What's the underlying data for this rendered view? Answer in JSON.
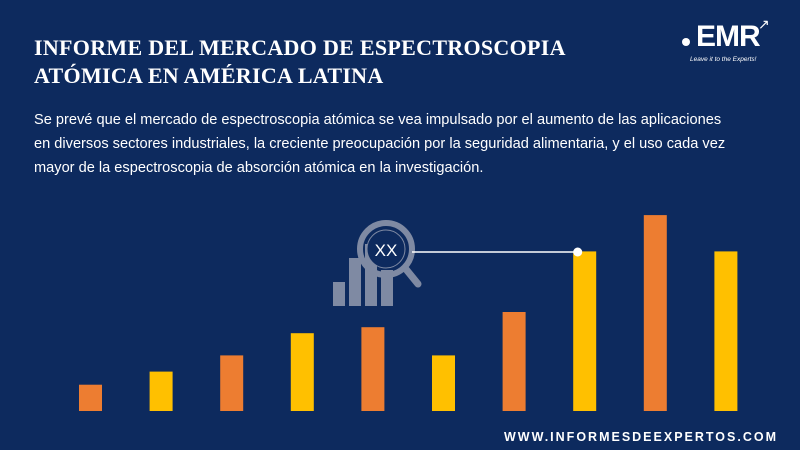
{
  "header": {
    "title_line1": "INFORME DEL MERCADO DE ESPECTROSCOPIA",
    "title_line2": "ATÓMICA EN AMÉRICA LATINA"
  },
  "logo": {
    "text": "EMR",
    "tagline": "Leave it to the Experts!"
  },
  "description": {
    "line1": "Se prevé que el mercado de espectroscopia atómica se vea impulsado por el aumento de las aplicaciones",
    "line2": "en diversos sectores industriales, la creciente preocupación por la seguridad alimentaria, y el uso cada vez",
    "line3": "mayor de la espectroscopia de absorción atómica en la investigación."
  },
  "footer": {
    "website": "WWW.INFORMESDEEXPERTOS.COM"
  },
  "colors": {
    "background": "#0d2a5e",
    "bar_orange": "#ed7d31",
    "bar_yellow": "#ffc000",
    "icon_gray": "#7f8aa3"
  },
  "chart_data": {
    "type": "bar",
    "title": "",
    "xlabel": "",
    "ylabel": "",
    "values": [
      26,
      39,
      55,
      77,
      83,
      55,
      98,
      158,
      194,
      158
    ],
    "bar_colors": [
      "orange",
      "yellow",
      "orange",
      "yellow",
      "orange",
      "yellow",
      "orange",
      "yellow",
      "orange",
      "yellow"
    ],
    "ylim": [
      0,
      200
    ],
    "grid": false,
    "legend": "none",
    "annotation": {
      "label": "XX",
      "icon": "magnifier-bar-chart-icon",
      "target_bar_index": 7
    }
  }
}
